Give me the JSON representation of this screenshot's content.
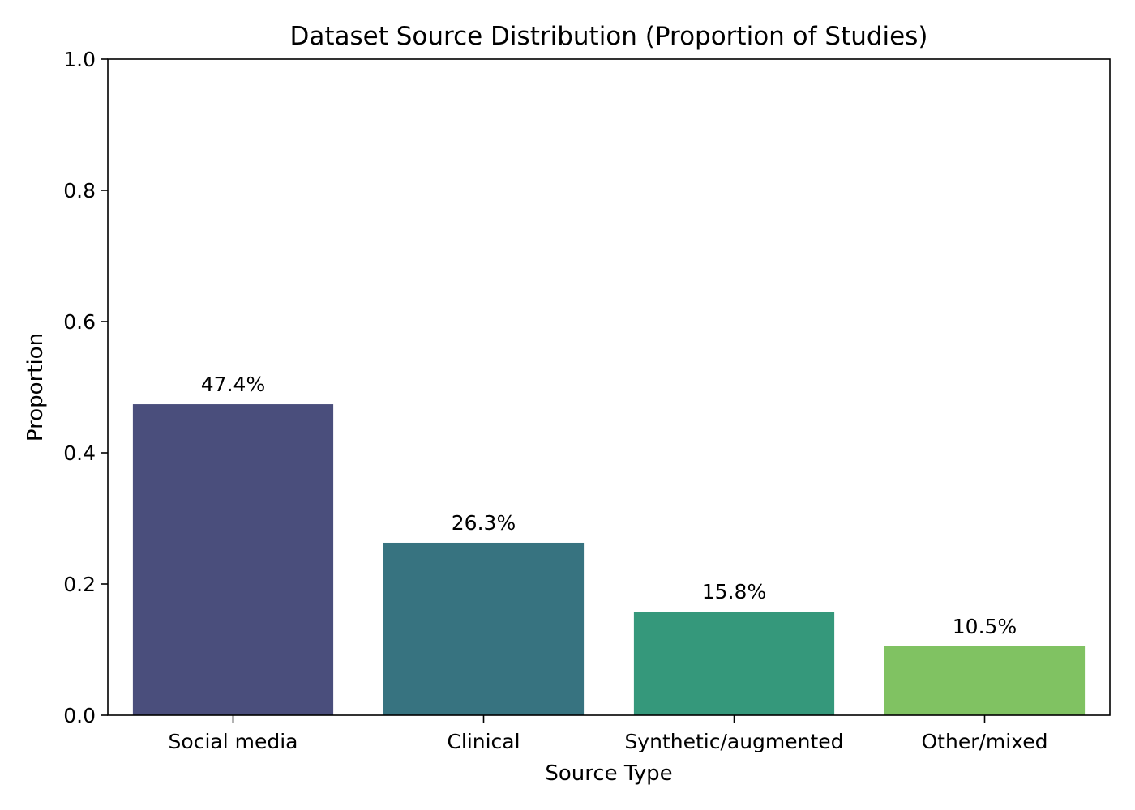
{
  "chart_data": {
    "type": "bar",
    "title": "Dataset Source Distribution (Proportion of Studies)",
    "xlabel": "Source Type",
    "ylabel": "Proportion",
    "categories": [
      "Social media",
      "Clinical",
      "Synthetic/augmented",
      "Other/mixed"
    ],
    "values": [
      0.474,
      0.263,
      0.158,
      0.105
    ],
    "data_labels": [
      "47.4%",
      "26.3%",
      "15.8%",
      "10.5%"
    ],
    "colors": [
      "#4a4e7c",
      "#377380",
      "#35987b",
      "#80c262"
    ],
    "ylim": [
      0,
      1.0
    ],
    "yticks": [
      0.0,
      0.2,
      0.4,
      0.6,
      0.8,
      1.0
    ],
    "ytick_labels": [
      "0.0",
      "0.2",
      "0.4",
      "0.6",
      "0.8",
      "1.0"
    ],
    "grid": false,
    "legend": "none"
  }
}
